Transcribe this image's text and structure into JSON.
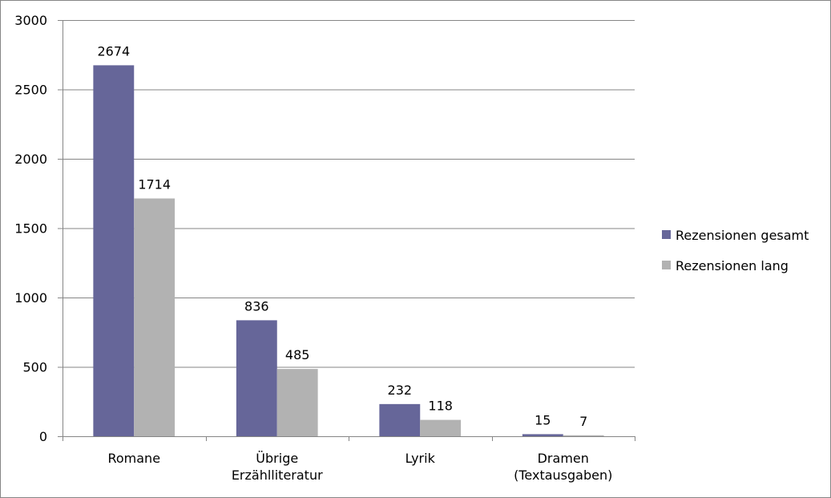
{
  "chart_data": {
    "type": "bar",
    "categories": [
      [
        "Romane"
      ],
      [
        "Übrige",
        "Erzählliteratur"
      ],
      [
        "Lyrik"
      ],
      [
        "Dramen",
        "(Textausgaben)"
      ]
    ],
    "series": [
      {
        "name": "Rezensionen gesamt",
        "values": [
          2674,
          836,
          232,
          15
        ],
        "color": "#666699"
      },
      {
        "name": "Rezensionen lang",
        "values": [
          1714,
          485,
          118,
          7
        ],
        "color": "#b2b2b2"
      }
    ],
    "ylim": [
      0,
      3000
    ],
    "yticks": [
      "0",
      "500",
      "1000",
      "1500",
      "2000",
      "2500",
      "3000"
    ],
    "grid": true,
    "legend_position": "right",
    "data_labels": true
  }
}
